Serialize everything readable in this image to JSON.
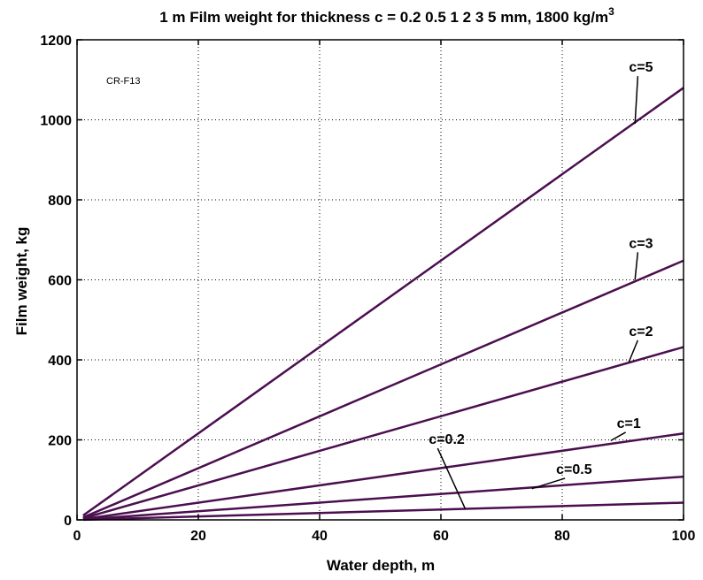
{
  "chart_data": {
    "type": "line",
    "title": "1 m Film weight for thickness c = 0.2  0.5  1  2  3  5 mm, 1800 kg/m",
    "title_superscript": "3",
    "xlabel": "Water depth, m",
    "ylabel": "Film weight, kg",
    "annotation": "CR-F13",
    "xlim": [
      0,
      100
    ],
    "ylim": [
      0,
      1200
    ],
    "xticks": [
      0,
      20,
      40,
      60,
      80,
      100
    ],
    "yticks": [
      0,
      200,
      400,
      600,
      800,
      1000,
      1200
    ],
    "grid": true,
    "line_color": "#4b0f4f",
    "series": [
      {
        "name": "c=0.2",
        "x": [
          1,
          100
        ],
        "y": [
          0.4,
          43
        ]
      },
      {
        "name": "c=0.5",
        "x": [
          1,
          100
        ],
        "y": [
          1,
          108
        ]
      },
      {
        "name": "c=1",
        "x": [
          1,
          100
        ],
        "y": [
          2,
          216
        ]
      },
      {
        "name": "c=2",
        "x": [
          1,
          100
        ],
        "y": [
          4,
          432
        ]
      },
      {
        "name": "c=3",
        "x": [
          1,
          100
        ],
        "y": [
          6,
          648
        ]
      },
      {
        "name": "c=5",
        "x": [
          1,
          100
        ],
        "y": [
          11,
          1080
        ]
      }
    ],
    "series_labels": [
      {
        "text": "c=5",
        "at": [
          91,
          1120
        ],
        "leader_to": [
          92,
          990
        ]
      },
      {
        "text": "c=3",
        "at": [
          91,
          680
        ],
        "leader_to": [
          92,
          600
        ]
      },
      {
        "text": "c=2",
        "at": [
          91,
          460
        ],
        "leader_to": [
          91,
          395
        ]
      },
      {
        "text": "c=1",
        "at": [
          89,
          230
        ],
        "leader_to": [
          88,
          198
        ]
      },
      {
        "text": "c=0.5",
        "at": [
          79,
          115
        ],
        "leader_to": [
          75,
          78
        ]
      },
      {
        "text": "c=0.2",
        "at": [
          58,
          190
        ],
        "leader_to": [
          64,
          28
        ]
      }
    ]
  }
}
